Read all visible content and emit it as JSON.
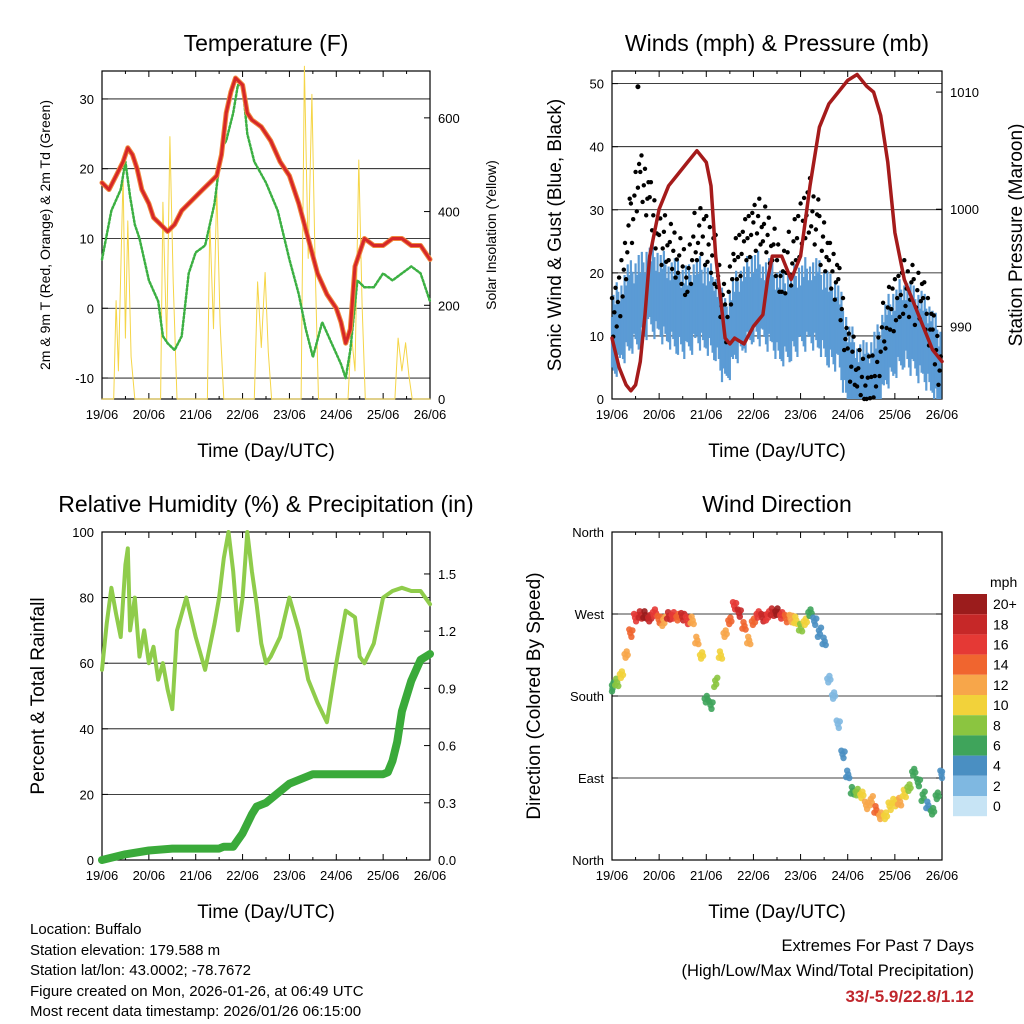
{
  "meta": {
    "location": "Location: Buffalo",
    "elevation": "Station elevation: 179.588 m",
    "latlon": "Station lat/lon: 43.0002; -78.7672",
    "created": "Figure created on Mon, 2026-01-26, at 06:49 UTC",
    "timestamp": "Most recent data timestamp: 2026/01/26 06:15:00"
  },
  "extremes": {
    "heading": "Extremes For Past 7 Days",
    "subheading": "(High/Low/Max Wind/Total Precipitation)",
    "values": "33/-5.9/22.8/1.12",
    "color": "#c0272d"
  },
  "x_ticks": [
    "19/06",
    "20/06",
    "21/06",
    "22/06",
    "23/06",
    "24/06",
    "25/06",
    "26/06"
  ],
  "chart_data": [
    {
      "type": "line",
      "title": "Temperature (F)",
      "xlabel": "Time (Day/UTC)",
      "ylabel": "2m & 9m T (Red, Orange) & 2m Td (Green)",
      "y2label": "Solar Insolation (Yellow)",
      "ylim": [
        -13,
        34
      ],
      "y2lim": [
        0,
        700
      ],
      "yticks": [
        -10,
        0,
        10,
        20,
        30
      ],
      "y2ticks": [
        0,
        200,
        400,
        600
      ],
      "colors": {
        "t2m": "#d62728",
        "t9m": "#f0883e",
        "td": "#3cb043",
        "solar": "#f5d547"
      },
      "series": [
        {
          "name": "2m T",
          "x": [
            0,
            0.15,
            0.3,
            0.45,
            0.55,
            0.65,
            0.75,
            0.85,
            1.0,
            1.1,
            1.25,
            1.4,
            1.55,
            1.7,
            1.85,
            2.0,
            2.15,
            2.3,
            2.45,
            2.55,
            2.65,
            2.75,
            2.85,
            3.0,
            3.1,
            3.2,
            3.4,
            3.6,
            3.8,
            4.0,
            4.2,
            4.4,
            4.6,
            4.8,
            5.0,
            5.1,
            5.2,
            5.3,
            5.4,
            5.5,
            5.6,
            5.8,
            6.0,
            6.2,
            6.4,
            6.6,
            6.8,
            7.0
          ],
          "values": [
            18,
            17,
            19,
            21,
            23,
            22,
            20,
            17,
            15,
            13,
            12,
            11,
            12,
            14,
            15,
            16,
            17,
            18,
            19,
            22,
            28,
            31,
            33,
            32,
            28,
            27,
            26,
            24,
            21,
            19,
            15,
            10,
            5,
            2,
            0,
            -2,
            -5,
            -3,
            6,
            8,
            10,
            9,
            9,
            10,
            10,
            9,
            9,
            7
          ]
        },
        {
          "name": "2m Td",
          "x": [
            0,
            0.2,
            0.4,
            0.5,
            0.6,
            0.7,
            0.8,
            1.0,
            1.2,
            1.3,
            1.4,
            1.55,
            1.7,
            1.85,
            2.0,
            2.2,
            2.4,
            2.55,
            2.65,
            2.8,
            2.9,
            3.0,
            3.1,
            3.25,
            3.5,
            3.75,
            4.0,
            4.2,
            4.35,
            4.5,
            4.7,
            4.9,
            5.1,
            5.2,
            5.3,
            5.45,
            5.6,
            5.8,
            6.0,
            6.2,
            6.4,
            6.6,
            6.8,
            7.0
          ],
          "values": [
            7,
            14,
            17,
            21,
            16,
            12,
            10,
            4,
            1,
            -4,
            -5,
            -6,
            -4,
            5,
            8,
            9,
            15,
            23,
            24,
            28,
            32,
            32,
            25,
            21,
            18,
            14,
            7,
            2,
            -3,
            -7,
            -2,
            -5,
            -8,
            -10,
            -6,
            4,
            3,
            3,
            5,
            4,
            5,
            6,
            5,
            1
          ]
        },
        {
          "name": "Solar Insolation",
          "x": [
            0,
            0.25,
            0.3,
            0.35,
            0.45,
            0.5,
            0.55,
            0.62,
            0.7,
            1.25,
            1.3,
            1.38,
            1.45,
            1.52,
            1.6,
            2.25,
            2.3,
            2.38,
            2.45,
            2.52,
            2.6,
            3.25,
            3.32,
            3.4,
            3.48,
            3.55,
            3.62,
            4.25,
            4.32,
            4.4,
            4.48,
            4.55,
            4.62,
            5.25,
            5.32,
            5.4,
            5.48,
            5.55,
            5.62,
            6.25,
            6.32,
            6.4,
            6.48,
            6.55,
            6.62,
            7.0
          ],
          "values": [
            0,
            0,
            210,
            60,
            480,
            130,
            380,
            90,
            0,
            0,
            420,
            120,
            560,
            250,
            0,
            0,
            380,
            150,
            450,
            160,
            0,
            0,
            250,
            110,
            270,
            100,
            0,
            0,
            710,
            300,
            650,
            280,
            0,
            0,
            140,
            60,
            510,
            200,
            0,
            0,
            130,
            60,
            120,
            50,
            0,
            0
          ]
        }
      ]
    },
    {
      "type": "line",
      "title": "Winds (mph) & Pressure (mb)",
      "xlabel": "Time (Day/UTC)",
      "ylabel": "Sonic Wind & Gust (Blue, Black)",
      "y2label": "Station Pressure (Maroon)",
      "ylim": [
        0,
        52
      ],
      "y2lim": [
        983.8,
        1011.8
      ],
      "yticks": [
        0,
        10,
        20,
        30,
        40,
        50
      ],
      "y2ticks": [
        990,
        1000,
        1010
      ],
      "colors": {
        "wind": "#5b9bd5",
        "gust": "#000000",
        "pressure": "#a51b1b"
      },
      "series": [
        {
          "name": "Sonic Wind",
          "x": [
            0,
            0.2,
            0.4,
            0.6,
            0.8,
            1.0,
            1.2,
            1.4,
            1.6,
            1.8,
            2.0,
            2.2,
            2.4,
            2.6,
            2.8,
            3.0,
            3.2,
            3.4,
            3.6,
            3.8,
            4.0,
            4.2,
            4.4,
            4.6,
            4.8,
            5.0,
            5.2,
            5.4,
            5.6,
            5.8,
            6.0,
            6.2,
            6.4,
            6.6,
            6.8,
            7.0
          ],
          "values": [
            9,
            12,
            14,
            15,
            17,
            16,
            15,
            14,
            13,
            15,
            14,
            13,
            8,
            12,
            14,
            16,
            15,
            14,
            12,
            13,
            14,
            15,
            14,
            12,
            11,
            5,
            2,
            1,
            3,
            8,
            10,
            12,
            10,
            9,
            7,
            3
          ]
        },
        {
          "name": "Gust",
          "x": [
            0,
            0.2,
            0.4,
            0.6,
            0.8,
            1.0,
            1.2,
            1.4,
            1.6,
            1.8,
            2.0,
            2.2,
            2.4,
            2.6,
            2.8,
            3.0,
            3.2,
            3.4,
            3.6,
            3.8,
            4.0,
            4.2,
            4.4,
            4.6,
            4.8,
            5.0,
            5.2,
            5.4,
            5.6,
            5.8,
            6.0,
            6.2,
            6.4,
            6.6,
            6.8,
            7.0
          ],
          "values": [
            13,
            20,
            30,
            36,
            33,
            28,
            25,
            24,
            22,
            28,
            26,
            24,
            14,
            22,
            26,
            30,
            28,
            26,
            22,
            24,
            28,
            33,
            28,
            22,
            20,
            10,
            5,
            4,
            7,
            14,
            16,
            20,
            18,
            16,
            12,
            6
          ]
        },
        {
          "name": "Station Pressure",
          "x": [
            0,
            0.15,
            0.3,
            0.4,
            0.5,
            0.6,
            0.7,
            0.8,
            1.0,
            1.2,
            1.4,
            1.6,
            1.8,
            2.0,
            2.1,
            2.2,
            2.4,
            2.5,
            2.6,
            2.8,
            3.0,
            3.2,
            3.3,
            3.4,
            3.6,
            3.8,
            4.0,
            4.2,
            4.4,
            4.6,
            4.8,
            5.0,
            5.2,
            5.4,
            5.55,
            5.7,
            5.85,
            6.0,
            6.2,
            6.4,
            6.6,
            6.8,
            7.0
          ],
          "values": [
            989,
            986.5,
            985,
            984.5,
            985,
            987,
            991,
            996,
            1000,
            1002,
            1003,
            1004,
            1005,
            1004,
            1002,
            996,
            989,
            988.5,
            989,
            988.5,
            990,
            991,
            994,
            996,
            996,
            994,
            996,
            1002,
            1007,
            1009,
            1010,
            1011,
            1011.5,
            1010.5,
            1010,
            1008,
            1004,
            998,
            994,
            992,
            990,
            988,
            987
          ]
        }
      ]
    },
    {
      "type": "line",
      "title": "Relative Humidity (%) & Precipitation (in)",
      "xlabel": "Time (Day/UTC)",
      "ylabel": "Percent & Total Rainfall",
      "ylim": [
        0,
        100
      ],
      "y2lim": [
        0,
        1.72
      ],
      "yticks": [
        0,
        20,
        40,
        60,
        80,
        100
      ],
      "y2ticks": [
        "0.0",
        "0.3",
        "0.6",
        "0.9",
        "1.2",
        "1.5"
      ],
      "colors": {
        "rh": "#8fcc4b",
        "precip": "#3aaa3a"
      },
      "series": [
        {
          "name": "Relative Humidity",
          "x": [
            0,
            0.1,
            0.2,
            0.3,
            0.4,
            0.5,
            0.55,
            0.6,
            0.7,
            0.8,
            0.9,
            1.0,
            1.1,
            1.2,
            1.3,
            1.4,
            1.5,
            1.6,
            1.8,
            2.0,
            2.2,
            2.4,
            2.5,
            2.6,
            2.7,
            2.8,
            2.9,
            3.0,
            3.1,
            3.2,
            3.3,
            3.4,
            3.5,
            3.6,
            3.8,
            4.0,
            4.2,
            4.4,
            4.6,
            4.8,
            5.0,
            5.2,
            5.4,
            5.5,
            5.6,
            5.8,
            6.0,
            6.2,
            6.4,
            6.6,
            6.8,
            7.0
          ],
          "values": [
            58,
            72,
            83,
            75,
            68,
            90,
            95,
            70,
            80,
            62,
            70,
            60,
            65,
            55,
            60,
            52,
            46,
            70,
            80,
            68,
            58,
            72,
            80,
            92,
            100,
            88,
            70,
            80,
            100,
            88,
            78,
            66,
            60,
            62,
            68,
            80,
            70,
            55,
            48,
            42,
            60,
            76,
            74,
            62,
            60,
            66,
            80,
            82,
            83,
            82,
            82,
            78
          ]
        },
        {
          "name": "Total Precipitation",
          "x": [
            0,
            0.5,
            1.0,
            1.5,
            2.0,
            2.5,
            2.6,
            2.8,
            3.0,
            3.2,
            3.3,
            3.5,
            4.0,
            4.5,
            5.0,
            5.5,
            6.0,
            6.1,
            6.2,
            6.3,
            6.4,
            6.6,
            6.8,
            7.0
          ],
          "values": [
            0.0,
            0.03,
            0.05,
            0.06,
            0.06,
            0.06,
            0.07,
            0.07,
            0.14,
            0.24,
            0.28,
            0.3,
            0.4,
            0.45,
            0.45,
            0.45,
            0.45,
            0.46,
            0.52,
            0.62,
            0.78,
            0.94,
            1.05,
            1.08
          ]
        }
      ]
    },
    {
      "type": "scatter",
      "title": "Wind Direction",
      "xlabel": "Time (Day/UTC)",
      "ylabel": "Direction (Colored By Speed)",
      "yticklabels": [
        "North",
        "East",
        "South",
        "West",
        "North"
      ],
      "yticks_deg": [
        0,
        90,
        180,
        270,
        360
      ],
      "legend_title": "mph",
      "legend": [
        {
          "label": "20+",
          "color": "#9b1c1c"
        },
        {
          "label": "18",
          "color": "#c62828"
        },
        {
          "label": "16",
          "color": "#e53935"
        },
        {
          "label": "14",
          "color": "#f0652f"
        },
        {
          "label": "12",
          "color": "#f7a64a"
        },
        {
          "label": "10",
          "color": "#f2d23a"
        },
        {
          "label": "8",
          "color": "#8bc540"
        },
        {
          "label": "6",
          "color": "#3fa45b"
        },
        {
          "label": "4",
          "color": "#4a8fc2"
        },
        {
          "label": "2",
          "color": "#7fb8e1"
        },
        {
          "label": "0",
          "color": "#c7e4f5"
        }
      ],
      "series": [
        {
          "name": "Direction",
          "x": [
            0.0,
            0.1,
            0.2,
            0.3,
            0.4,
            0.5,
            0.6,
            0.7,
            0.8,
            0.9,
            1.0,
            1.1,
            1.2,
            1.3,
            1.4,
            1.5,
            1.6,
            1.7,
            1.8,
            1.9,
            2.0,
            2.1,
            2.2,
            2.3,
            2.4,
            2.5,
            2.6,
            2.7,
            2.8,
            2.9,
            3.0,
            3.1,
            3.2,
            3.3,
            3.4,
            3.5,
            3.6,
            3.7,
            3.8,
            3.9,
            4.0,
            4.1,
            4.2,
            4.3,
            4.4,
            4.5,
            4.6,
            4.7,
            4.8,
            4.9,
            5.0,
            5.1,
            5.2,
            5.3,
            5.4,
            5.5,
            5.6,
            5.7,
            5.8,
            5.9,
            6.0,
            6.1,
            6.2,
            6.3,
            6.4,
            6.5,
            6.6,
            6.7,
            6.8,
            6.9,
            7.0
          ],
          "values": [
            190,
            195,
            205,
            225,
            250,
            265,
            270,
            268,
            266,
            270,
            264,
            262,
            268,
            270,
            266,
            268,
            262,
            264,
            240,
            225,
            175,
            170,
            195,
            225,
            250,
            262,
            280,
            270,
            258,
            240,
            262,
            268,
            266,
            268,
            272,
            274,
            268,
            266,
            264,
            264,
            254,
            262,
            270,
            262,
            250,
            240,
            200,
            180,
            150,
            115,
            95,
            75,
            75,
            70,
            60,
            65,
            55,
            50,
            48,
            60,
            62,
            65,
            72,
            80,
            95,
            85,
            70,
            60,
            55,
            70,
            95
          ],
          "speeds": [
            6,
            8,
            10,
            12,
            14,
            16,
            18,
            20,
            18,
            16,
            14,
            12,
            18,
            16,
            14,
            18,
            16,
            12,
            12,
            10,
            6,
            5,
            8,
            10,
            12,
            14,
            16,
            18,
            14,
            12,
            14,
            16,
            18,
            16,
            18,
            20,
            16,
            14,
            12,
            10,
            8,
            10,
            6,
            4,
            4,
            3,
            2,
            2,
            2,
            3,
            4,
            6,
            8,
            10,
            12,
            12,
            14,
            12,
            10,
            10,
            10,
            12,
            10,
            8,
            6,
            6,
            5,
            4,
            5,
            6,
            4
          ]
        }
      ]
    }
  ]
}
